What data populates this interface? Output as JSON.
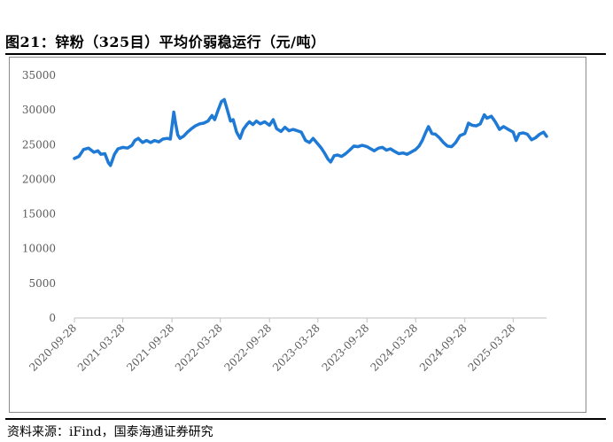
{
  "title": "图21：锌粉（325目）平均价弱稳运行（元/吨）",
  "source": "资料来源：iFind，国泰海通证券研究",
  "chart_data": {
    "type": "line",
    "title": "锌粉（325目）平均价弱稳运行（元/吨）",
    "xlabel": "",
    "ylabel": "",
    "ylim": [
      0,
      35000
    ],
    "yticks": [
      0,
      5000,
      10000,
      15000,
      20000,
      25000,
      30000,
      35000
    ],
    "xticks": [
      "2020-09-28",
      "2021-03-28",
      "2021-09-28",
      "2022-03-28",
      "2022-09-28",
      "2023-03-28",
      "2023-09-28",
      "2024-03-28",
      "2024-09-28",
      "2025-03-28"
    ],
    "x_range": [
      "2020-09-28",
      "2025-07-31"
    ],
    "grid": false,
    "line_color": "#1f7ad6",
    "series": [
      {
        "name": "",
        "points": [
          [
            "2020-09-28",
            23000
          ],
          [
            "2020-10-15",
            23300
          ],
          [
            "2020-11-01",
            24300
          ],
          [
            "2020-11-20",
            24500
          ],
          [
            "2020-12-10",
            23900
          ],
          [
            "2020-12-25",
            24100
          ],
          [
            "2021-01-05",
            23600
          ],
          [
            "2021-01-20",
            23700
          ],
          [
            "2021-02-02",
            22400
          ],
          [
            "2021-02-10",
            22000
          ],
          [
            "2021-02-25",
            23600
          ],
          [
            "2021-03-10",
            24400
          ],
          [
            "2021-03-28",
            24600
          ],
          [
            "2021-04-15",
            24500
          ],
          [
            "2021-05-01",
            24900
          ],
          [
            "2021-05-12",
            25600
          ],
          [
            "2021-05-25",
            25900
          ],
          [
            "2021-06-10",
            25300
          ],
          [
            "2021-06-25",
            25600
          ],
          [
            "2021-07-10",
            25300
          ],
          [
            "2021-07-25",
            25600
          ],
          [
            "2021-08-10",
            25400
          ],
          [
            "2021-08-25",
            25800
          ],
          [
            "2021-09-10",
            25900
          ],
          [
            "2021-09-22",
            25800
          ],
          [
            "2021-10-05",
            29700
          ],
          [
            "2021-10-12",
            28000
          ],
          [
            "2021-10-20",
            26400
          ],
          [
            "2021-10-28",
            25900
          ],
          [
            "2021-11-10",
            26200
          ],
          [
            "2021-11-25",
            26800
          ],
          [
            "2021-12-10",
            27300
          ],
          [
            "2021-12-25",
            27700
          ],
          [
            "2022-01-10",
            28000
          ],
          [
            "2022-01-25",
            28100
          ],
          [
            "2022-02-10",
            28400
          ],
          [
            "2022-02-25",
            29200
          ],
          [
            "2022-03-07",
            28600
          ],
          [
            "2022-03-20",
            30000
          ],
          [
            "2022-04-01",
            31200
          ],
          [
            "2022-04-12",
            31500
          ],
          [
            "2022-04-22",
            30200
          ],
          [
            "2022-05-05",
            28400
          ],
          [
            "2022-05-15",
            28600
          ],
          [
            "2022-05-28",
            26800
          ],
          [
            "2022-06-10",
            25900
          ],
          [
            "2022-06-22",
            27200
          ],
          [
            "2022-07-05",
            27900
          ],
          [
            "2022-07-15",
            28300
          ],
          [
            "2022-07-28",
            27900
          ],
          [
            "2022-08-10",
            28400
          ],
          [
            "2022-08-25",
            28000
          ],
          [
            "2022-09-10",
            28300
          ],
          [
            "2022-09-28",
            27800
          ],
          [
            "2022-10-12",
            28600
          ],
          [
            "2022-10-25",
            27300
          ],
          [
            "2022-11-10",
            26900
          ],
          [
            "2022-11-25",
            27500
          ],
          [
            "2022-12-10",
            27000
          ],
          [
            "2022-12-25",
            27200
          ],
          [
            "2023-01-10",
            27000
          ],
          [
            "2023-01-25",
            26800
          ],
          [
            "2023-02-10",
            25600
          ],
          [
            "2023-02-25",
            25300
          ],
          [
            "2023-03-10",
            25900
          ],
          [
            "2023-03-28",
            25100
          ],
          [
            "2023-04-10",
            24500
          ],
          [
            "2023-04-22",
            23800
          ],
          [
            "2023-05-05",
            22900
          ],
          [
            "2023-05-15",
            22500
          ],
          [
            "2023-05-28",
            23400
          ],
          [
            "2023-06-10",
            23500
          ],
          [
            "2023-06-25",
            23300
          ],
          [
            "2023-07-10",
            23700
          ],
          [
            "2023-07-25",
            24200
          ],
          [
            "2023-08-10",
            24800
          ],
          [
            "2023-08-25",
            24700
          ],
          [
            "2023-09-10",
            24900
          ],
          [
            "2023-09-28",
            24700
          ],
          [
            "2023-10-12",
            24400
          ],
          [
            "2023-10-25",
            24100
          ],
          [
            "2023-11-10",
            24500
          ],
          [
            "2023-11-25",
            24600
          ],
          [
            "2023-12-10",
            24200
          ],
          [
            "2023-12-25",
            24400
          ],
          [
            "2024-01-10",
            24000
          ],
          [
            "2024-01-25",
            23700
          ],
          [
            "2024-02-10",
            23800
          ],
          [
            "2024-02-25",
            23600
          ],
          [
            "2024-03-10",
            23900
          ],
          [
            "2024-03-28",
            24300
          ],
          [
            "2024-04-10",
            24800
          ],
          [
            "2024-04-22",
            25600
          ],
          [
            "2024-05-05",
            26800
          ],
          [
            "2024-05-15",
            27600
          ],
          [
            "2024-05-28",
            26600
          ],
          [
            "2024-06-10",
            26500
          ],
          [
            "2024-06-25",
            26000
          ],
          [
            "2024-07-10",
            25300
          ],
          [
            "2024-07-25",
            24800
          ],
          [
            "2024-08-10",
            24700
          ],
          [
            "2024-08-25",
            25300
          ],
          [
            "2024-09-10",
            26300
          ],
          [
            "2024-09-28",
            26600
          ],
          [
            "2024-10-12",
            28100
          ],
          [
            "2024-10-25",
            27800
          ],
          [
            "2024-11-10",
            27700
          ],
          [
            "2024-11-25",
            28000
          ],
          [
            "2024-12-10",
            29300
          ],
          [
            "2024-12-20",
            28800
          ],
          [
            "2025-01-05",
            29100
          ],
          [
            "2025-01-20",
            28300
          ],
          [
            "2025-02-05",
            27200
          ],
          [
            "2025-02-20",
            27600
          ],
          [
            "2025-03-05",
            27300
          ],
          [
            "2025-03-28",
            26800
          ],
          [
            "2025-04-08",
            25600
          ],
          [
            "2025-04-20",
            26600
          ],
          [
            "2025-05-05",
            26700
          ],
          [
            "2025-05-20",
            26500
          ],
          [
            "2025-06-05",
            25700
          ],
          [
            "2025-06-20",
            26000
          ],
          [
            "2025-07-05",
            26500
          ],
          [
            "2025-07-20",
            26800
          ],
          [
            "2025-07-31",
            26200
          ]
        ]
      }
    ]
  }
}
